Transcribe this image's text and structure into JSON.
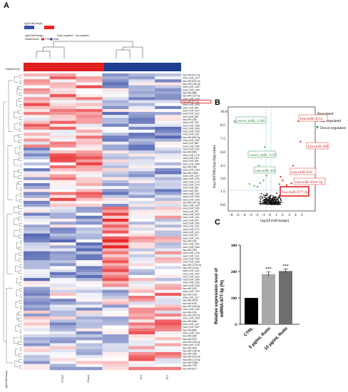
{
  "panels": {
    "a": "A",
    "b": "B",
    "c": "C"
  },
  "heatmap": {
    "legend_title": "log2(FoldChange)",
    "legend_items": [
      "Down-regulated",
      "Up-regulated"
    ],
    "sample_group_legend": "SampleGroup",
    "sample_legend_items": [
      "CTRL",
      "Rutin"
    ],
    "group_row_label": "SampleGroup",
    "samples": [
      "CTRL1",
      "CTRL2",
      "CTRL3",
      "Rutin1",
      "Rutin2",
      "Rutin3"
    ],
    "sample_x_labels": [
      "",
      "Group2",
      "Group1",
      "",
      "NC2",
      "NC1"
    ],
    "left_axis_label": "log2(FoldChange)",
    "highlight_row": "hsa-miR-877-3p",
    "row_labels": [
      "hsa-miR-6721-5p",
      "novel_miR_1377",
      "hsa-miR-6797-5p",
      "hsa-miR-1285-5p",
      "novel_miR_1152",
      "novel_miR_1245",
      "hsa-miR-3656",
      "hsa-miR-1237-5p",
      "novel_miR_1106",
      "hsa-miR-877-3p",
      "novel_miR_1040",
      "novel_miR_963",
      "novel_miR_1077",
      "novel_miR_1162",
      "novel_miR_881",
      "hsa-miR-1268",
      "novel_miR_769",
      "novel_miR_1056",
      "novel_miR_2043",
      "novel_miR_1039",
      "novel_miR_1131",
      "hsa-miR-4634-5p",
      "novel_miR_1002",
      "novel_miR_864",
      "novel_miR_1063",
      "novel_miR_1152",
      "hsa-miR-4281",
      "novel_miR_1178",
      "novel_miR_1113",
      "novel_miR_906",
      "novel_miR_1099",
      "hsa-miR-1246",
      "novel_miR_1094",
      "hsa-miR-1464b",
      "novel_miR_1037",
      "novel_miR_1000",
      "novel_miR_1175",
      "novel_miR_1174",
      "novel_miR_818",
      "novel_miR_834",
      "novel_miR_1109",
      "novel_miR_1030",
      "novel_miR_1155",
      "hsa-miR-1247-5p",
      "novel_miR_1047",
      "novel_miR_1052",
      "novel_miR_875",
      "novel_miR_1003",
      "novel_miR_1141",
      "novel_miR_879",
      "novel_miR_1002",
      "novel_miR_1110",
      "novel_miR_1172",
      "novel_miR_1121",
      "novel_miR_817",
      "novel_miR_1141",
      "hsa-miR-1913",
      "novel_miR_1041",
      "novel_miR_1064",
      "hsa-miR-1303",
      "novel_miR_1145",
      "novel_miR_1113",
      "novel_miR_1052",
      "novel_miR_1039",
      "hsa-miR-1273h-5p",
      "hsa-miR-126-5p",
      "novel_miR_1114",
      "novel_miR_1007",
      "novel_miR_1162",
      "novel_miR_1059",
      "novel_miR_1160",
      "novel_miR_1033",
      "hsa-miR-3125",
      "novel_miR_1190",
      "hsa-miR-1248",
      "novel_miR_1117",
      "hsa-miR-4419b",
      "hsa-miR-6790",
      "hsa-miR-1185-5p",
      "novel_miR_1100",
      "hsa-miR-1343",
      "hsa-miR-1302-5p",
      "novel_miR_1053",
      "hsa-miR-4636",
      "novel_miR_1111",
      "novel_miR_1097",
      "hsa-miR-6800",
      "novel_miR_1016",
      "hsa-miR-1184",
      "hsa-miR-5703",
      "hsa-miR-1306-5p",
      "novel_miR_1078",
      "hsa-miR-3196",
      "hsa-miR-1228-3p",
      "hsa-miR-1306",
      "hsa-miR-6749-5p",
      "hsa-miR-1273-5p",
      "hsa-miR-1255a",
      "hsa-miR-7705",
      "hsa-miR-6127"
    ],
    "palette": {
      "high": "#e8262a",
      "mid": "#ffffff",
      "low": "#3a4fa8",
      "ctrl_bar": "#e02020",
      "rutin_bar": "#1e3f8f",
      "highlight": "#e02020"
    }
  },
  "volcano": {
    "ylabel": "-log10(FDR)/log10(pvalue)",
    "xlabel": "log2(FoldChange)",
    "legend": [
      "Regulated",
      "Up-regulated",
      "Down-regulated"
    ],
    "labels_down": [
      "novel_miR_1148",
      "novel_miR_1113",
      "hsa-miR-365"
    ],
    "labels_up": [
      "hsa-miR-451a",
      "hsa-miR-206",
      "hsa-miR-944",
      "hsa-miR-302e-5p",
      "hsa-miR-877-3p"
    ],
    "top_left_tag": "hsa-",
    "colors": {
      "up": "#e8332a",
      "down": "#2e9e4a",
      "ns": "#111111",
      "threshold": "#5aa9c9"
    }
  },
  "chart_data": {
    "type": "bar",
    "categories": [
      "CTRL",
      "5 μg/mL Rutin",
      "10 μg/mL Rutin"
    ],
    "values": [
      100,
      190,
      202
    ],
    "errors": [
      0,
      8,
      7
    ],
    "significance": [
      "",
      "***",
      "***"
    ],
    "ylabel": "Relative expression level of miRNA-877-3p (%)",
    "ylim": [
      0,
      300
    ],
    "yticks": [
      "0",
      "100",
      "200",
      "300"
    ],
    "colors": [
      "#000000",
      "#a8a8a8",
      "#6e6e6e"
    ]
  }
}
